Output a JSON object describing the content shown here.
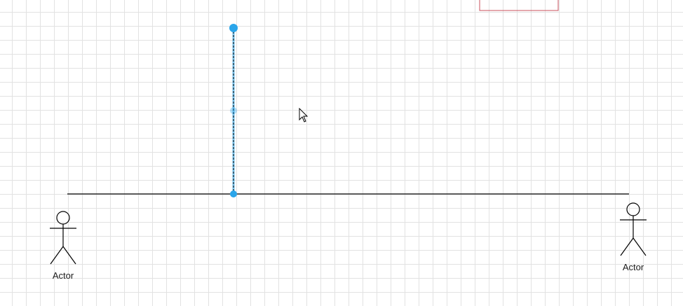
{
  "diagram": {
    "actors": [
      {
        "label": "Actor"
      },
      {
        "label": "Actor"
      }
    ],
    "selection_color": "#2aa5ea",
    "edge_color": "#000000",
    "partial_shape_border_color": "#c8515e",
    "grid_color": "#e2e2e2"
  },
  "icons": {
    "cursor": "arrow-pointer"
  }
}
